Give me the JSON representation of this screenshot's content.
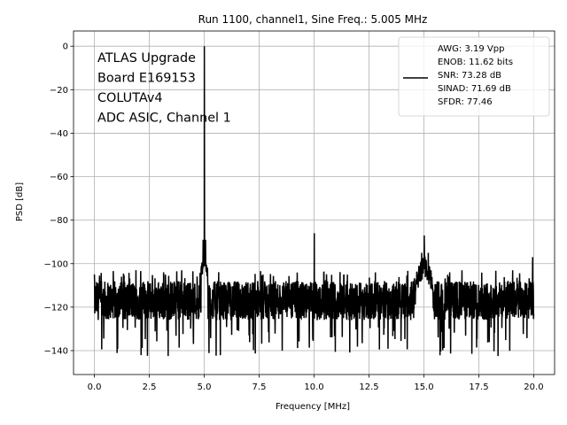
{
  "chart_data": {
    "type": "line",
    "title": "Run 1100, channel1, Sine Freq.: 5.005 MHz",
    "xlabel": "Frequency [MHz]",
    "ylabel": "PSD [dB]",
    "xlim": [
      -0.95,
      20.95
    ],
    "ylim": [
      -151,
      7
    ],
    "xticks": [
      0.0,
      2.5,
      5.0,
      7.5,
      10.0,
      12.5,
      15.0,
      17.5,
      20.0
    ],
    "xtick_labels": [
      "0.0",
      "2.5",
      "5.0",
      "7.5",
      "10.0",
      "12.5",
      "15.0",
      "17.5",
      "20.0"
    ],
    "yticks": [
      0,
      -20,
      -40,
      -60,
      -80,
      -100,
      -120,
      -140
    ],
    "ytick_labels": [
      "0",
      "−20",
      "−40",
      "−60",
      "−80",
      "−100",
      "−120",
      "−140"
    ],
    "grid": true,
    "legend_placement": "top-right",
    "annotation_lines": [
      "ATLAS Upgrade",
      " Board E169153",
      "COLUTAv4",
      "ADC ASIC, Channel 1"
    ],
    "legend_lines": [
      "AWG: 3.19 Vpp",
      "ENOB: 11.62 bits",
      "SNR: 73.28 dB",
      "SINAD: 71.69 dB",
      "SFDR: 77.46"
    ],
    "series_color": "#000000",
    "noise_floor_db": -117,
    "noise_range_db": [
      -143,
      -103
    ],
    "peaks": [
      {
        "x": 5.005,
        "y": 0
      },
      {
        "x": 4.95,
        "y": -89
      },
      {
        "x": 5.06,
        "y": -89
      },
      {
        "x": 10.01,
        "y": -86
      },
      {
        "x": 15.015,
        "y": -87
      },
      {
        "x": 14.9,
        "y": -95
      },
      {
        "x": 15.2,
        "y": -95
      },
      {
        "x": 19.95,
        "y": -97
      },
      {
        "x": 0.0,
        "y": -105
      }
    ]
  }
}
